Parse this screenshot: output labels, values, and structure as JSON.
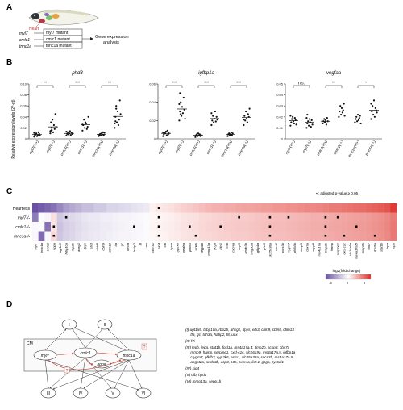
{
  "panel_letters": {
    "a": "A",
    "b": "B",
    "c": "C",
    "d": "D"
  },
  "panelA": {
    "heart_label": "Heart",
    "genes": [
      "myl7",
      "cmlc1",
      "tnnc1a"
    ],
    "mutants": [
      "myl7 mutant",
      "cmlc1 mutant",
      "tnnc1a mutant"
    ],
    "analysis": "Gene expression analysis",
    "analysis_lines": [
      "Gene expression",
      "analysis"
    ]
  },
  "panelB": {
    "ylabel": "Relative expression levels (2^-ct)",
    "groups": [
      "myl7(+/+)",
      "myl7(-/-)",
      "cmlc1(+/+)",
      "cmlc1(-/-)",
      "tnnc1a(+/+)",
      "tnnc1a(-/-)"
    ]
  },
  "panelC": {
    "row_labels": [
      "Heartless",
      "myl7-/-",
      "cmlc1-/-",
      "tnnc1a-/-"
    ],
    "legend_note": "▪ : adjusted p-value ≥ 0.05",
    "colorbar_title": "log2(fold change)",
    "colorbar_ticks": [
      "-5",
      "0",
      "5"
    ],
    "colors": {
      "neg": "#6a51a3",
      "zero": "#ffffff",
      "pos": "#de2d26"
    }
  },
  "panelD": {
    "cm_label": "CM",
    "nodes": {
      "myl7": "myl7",
      "cmlc1": "cmlc1",
      "nppa": "nppa",
      "tnnc1a": "tnnc1a"
    },
    "groups_top": [
      "I",
      "II"
    ],
    "groups_bottom": [
      "III",
      "IV",
      "V",
      "VI"
    ],
    "question": "?",
    "legend": [
      "(I) ugt1a5, fabp10a, rbp2b, ahsg1, dpys, ebi3, cbln9, cbln8, cbln13",
      "     tfa, gc, tdh3a, habp2, f8, uox",
      "(II) f7i",
      "(III) lepb, lepa, stat1b, fosl1a, ms4a17a.4, timp2b, scpp8, cbx7a",
      "     mmp9, hamp, serpine1, cxcl-c1c, slc16a9a, ms4a17a.5, igfbp1a",
      "     crygm7, pfkfb3, cyp2k6, esm1, slc25a38a, socs3b, ms4a17a.5",
      "     angpt2a, arrdc3b, ucp3, c3b, cxcr4a, il4r.1, gcga, cyr61l1",
      "(IV) sid4",
      "(V) cfb, hpda",
      "(VI) mmp13a, sepp1b"
    ]
  },
  "chart_data": [
    {
      "type": "scatter",
      "title": "phd3",
      "categories": [
        "myl7(+/+)",
        "myl7(-/-)",
        "cmlc1(+/+)",
        "cmlc1(-/-)",
        "tnnc1a(+/+)",
        "tnnc1a(-/-)"
      ],
      "ylabel": "Relative expression levels (2^-ct)",
      "ylim": [
        0,
        0.1
      ],
      "yticks": [
        "0",
        "0.02",
        "0.04",
        "0.06",
        "0.08",
        "0.10"
      ],
      "significance": [
        {
          "pair": [
            0,
            1
          ],
          "label": "**"
        },
        {
          "pair": [
            2,
            3
          ],
          "label": "***"
        },
        {
          "pair": [
            4,
            5
          ],
          "label": "**"
        }
      ],
      "series": [
        {
          "values": [
            [
              0.004,
              0.006,
              0.008,
              0.01,
              0.005,
              0.007,
              0.012,
              0.009,
              0.006,
              0.011,
              0.008
            ],
            [
              0.01,
              0.015,
              0.02,
              0.035,
              0.012,
              0.025,
              0.018,
              0.045,
              0.022,
              0.014,
              0.03,
              0.016
            ],
            [
              0.006,
              0.009,
              0.012,
              0.008,
              0.01,
              0.014,
              0.007,
              0.011,
              0.009,
              0.013
            ],
            [
              0.015,
              0.025,
              0.035,
              0.02,
              0.03,
              0.028,
              0.018,
              0.022,
              0.04,
              0.026
            ],
            [
              0.005,
              0.007,
              0.009,
              0.006,
              0.01,
              0.008,
              0.012,
              0.007,
              0.011
            ],
            [
              0.02,
              0.04,
              0.06,
              0.03,
              0.05,
              0.025,
              0.035,
              0.07,
              0.045,
              0.028,
              0.032,
              0.055
            ]
          ]
        }
      ]
    },
    {
      "type": "scatter",
      "title": "igfbp1a",
      "categories": [
        "myl7(+/+)",
        "myl7(-/-)",
        "cmlc1(+/+)",
        "cmlc1(-/-)",
        "tnnc1a(+/+)",
        "tnnc1a(-/-)"
      ],
      "ylim": [
        0,
        0.06
      ],
      "yticks": [
        "0",
        "0.02",
        "0.04",
        "0.06"
      ],
      "significance": [
        {
          "pair": [
            0,
            1
          ],
          "label": "***"
        },
        {
          "pair": [
            2,
            3
          ],
          "label": "***"
        },
        {
          "pair": [
            4,
            5
          ],
          "label": "***"
        }
      ],
      "series": [
        {
          "values": [
            [
              0.003,
              0.005,
              0.007,
              0.006,
              0.008,
              0.004,
              0.009,
              0.005,
              0.006,
              0.007
            ],
            [
              0.02,
              0.03,
              0.04,
              0.025,
              0.035,
              0.028,
              0.045,
              0.032,
              0.022,
              0.038,
              0.05,
              0.027
            ],
            [
              0.002,
              0.004,
              0.005,
              0.003,
              0.006,
              0.004,
              0.005,
              0.003,
              0.004
            ],
            [
              0.015,
              0.02,
              0.025,
              0.018,
              0.022,
              0.03,
              0.019,
              0.024,
              0.021,
              0.028
            ],
            [
              0.003,
              0.005,
              0.006,
              0.004,
              0.005,
              0.007,
              0.004,
              0.006
            ],
            [
              0.015,
              0.025,
              0.02,
              0.03,
              0.022,
              0.018,
              0.027,
              0.024,
              0.033,
              0.021
            ]
          ]
        }
      ]
    },
    {
      "type": "scatter",
      "title": "vegfaa",
      "categories": [
        "myl7(+/+)",
        "myl7(-/-)",
        "cmlc1(+/+)",
        "cmlc1(-/-)",
        "tnnc1a(+/+)",
        "tnnc1a(-/-)"
      ],
      "ylim": [
        0,
        0.05
      ],
      "yticks": [
        "0",
        "0.01",
        "0.02",
        "0.03",
        "0.04",
        "0.05"
      ],
      "significance": [
        {
          "pair": [
            0,
            1
          ],
          "label": "n.s."
        },
        {
          "pair": [
            2,
            3
          ],
          "label": "**"
        },
        {
          "pair": [
            4,
            5
          ],
          "label": "*"
        }
      ],
      "series": [
        {
          "values": [
            [
              0.012,
              0.015,
              0.018,
              0.02,
              0.016,
              0.014,
              0.019,
              0.017,
              0.013,
              0.021
            ],
            [
              0.01,
              0.014,
              0.016,
              0.012,
              0.018,
              0.015,
              0.011,
              0.017,
              0.013,
              0.019,
              0.022
            ],
            [
              0.014,
              0.016,
              0.018,
              0.015,
              0.017,
              0.013,
              0.019,
              0.016
            ],
            [
              0.02,
              0.025,
              0.03,
              0.022,
              0.028,
              0.024,
              0.026,
              0.032,
              0.021
            ],
            [
              0.015,
              0.018,
              0.02,
              0.016,
              0.022,
              0.017,
              0.019,
              0.021,
              0.014
            ],
            [
              0.018,
              0.025,
              0.03,
              0.022,
              0.035,
              0.02,
              0.028,
              0.026,
              0.024,
              0.032
            ]
          ]
        }
      ]
    },
    {
      "type": "heatmap",
      "rows": [
        "Heartless",
        "myl7-/-",
        "cmlc1-/-",
        "tnnc1a-/-"
      ],
      "columns": [
        "myl7",
        "tnnc1a",
        "cmlc1",
        "nppa",
        "ugt1a5",
        "fabp10a",
        "rbp2b",
        "ahsg1",
        "dpys",
        "ebi3",
        "cbln8",
        "cbln9",
        "cbln13",
        "tfa",
        "gc",
        "tdh3a",
        "habp2",
        "f8",
        "uox",
        "cxcl-c1",
        "sid4",
        "cfb",
        "hpda",
        "cyp2k6",
        "vegfaa",
        "pfkfb3",
        "sid4b",
        "sepp1b",
        "mmp13a",
        "gcga",
        "il4r.1",
        "c3b",
        "cxcr4a",
        "ucp3",
        "arrdc3b",
        "angpt2a",
        "igfbp1a",
        "phd3",
        "slc25a38a",
        "esm1",
        "socs3b",
        "crygm7",
        "pfkfb3b",
        "mmp9",
        "cbx7a",
        "scpp8",
        "ms4a17a",
        "timp2b",
        "hamp",
        "serpine1",
        "cxcl-c1c",
        "slc16a9a",
        "ms4a17a.5",
        "mmp9b",
        "cbx7",
        "fosl1a",
        "stat1b",
        "lepa",
        "lepb"
      ],
      "colorbar": {
        "title": "log2(fold change)",
        "ticks": [
          "-5",
          "0",
          "5"
        ],
        "range": [
          -8,
          8
        ]
      },
      "values": [
        [
          -8.0,
          -7.5,
          -7.0,
          -6.5,
          -5.5,
          -4.5,
          -4.0,
          -3.5,
          -3.0,
          -3.0,
          -2.5,
          -2.5,
          -2.0,
          -2.0,
          -1.8,
          -1.6,
          -1.4,
          -1.2,
          -1.0,
          0.5,
          0.8,
          1.0,
          1.2,
          1.5,
          1.8,
          2.0,
          2.2,
          2.5,
          2.8,
          3.0,
          3.0,
          3.2,
          3.2,
          3.4,
          3.5,
          3.5,
          3.6,
          3.8,
          3.8,
          4.0,
          4.0,
          4.2,
          4.2,
          4.4,
          4.5,
          4.5,
          4.6,
          4.8,
          5.0,
          5.0,
          5.2,
          5.3,
          5.5,
          5.6,
          5.8,
          6.0,
          6.2,
          6.5,
          7.5
        ],
        [
          -6.0,
          -0.2,
          -0.5,
          1.2,
          -2.5,
          -2.0,
          -1.8,
          -1.5,
          -1.2,
          -1.0,
          -1.0,
          -0.8,
          -0.8,
          -0.6,
          -0.5,
          -0.5,
          -0.4,
          -0.3,
          -0.2,
          0.3,
          0.4,
          0.5,
          0.6,
          0.8,
          1.0,
          1.1,
          1.2,
          1.4,
          1.5,
          1.6,
          1.7,
          1.8,
          1.9,
          2.0,
          2.0,
          2.1,
          2.2,
          2.3,
          2.4,
          2.5,
          2.5,
          2.6,
          2.7,
          2.8,
          2.9,
          3.0,
          3.0,
          3.1,
          3.2,
          3.3,
          3.4,
          3.5,
          3.6,
          3.7,
          3.8,
          4.0,
          4.2,
          4.5,
          5.0
        ],
        [
          -0.3,
          -0.2,
          -6.5,
          1.0,
          -2.8,
          -2.2,
          -2.0,
          -1.6,
          -1.4,
          -1.2,
          -1.1,
          -0.9,
          -0.9,
          -0.7,
          -0.6,
          -0.5,
          -0.4,
          -0.4,
          -0.2,
          0.4,
          0.5,
          0.6,
          0.7,
          0.9,
          1.1,
          1.2,
          1.3,
          1.5,
          1.6,
          1.7,
          1.8,
          1.9,
          2.0,
          2.1,
          2.1,
          2.2,
          2.3,
          2.4,
          2.5,
          2.6,
          2.6,
          2.7,
          2.8,
          2.9,
          3.0,
          3.1,
          3.1,
          3.2,
          3.3,
          3.4,
          3.5,
          3.6,
          3.7,
          3.8,
          3.9,
          4.1,
          4.3,
          4.6,
          5.2
        ],
        [
          -0.4,
          -6.8,
          -0.3,
          1.5,
          -2.6,
          -2.1,
          -1.9,
          -1.5,
          -1.3,
          -1.1,
          -1.0,
          -0.9,
          -0.8,
          -0.6,
          -0.5,
          -0.5,
          -0.4,
          -0.3,
          -0.2,
          0.3,
          0.4,
          0.5,
          0.7,
          0.8,
          1.0,
          1.1,
          1.2,
          1.4,
          1.5,
          1.6,
          1.7,
          1.8,
          1.9,
          2.0,
          2.0,
          2.1,
          2.2,
          2.3,
          2.4,
          2.5,
          2.5,
          2.6,
          2.7,
          2.8,
          2.9,
          3.0,
          3.0,
          3.1,
          3.2,
          3.3,
          3.4,
          3.5,
          3.6,
          3.7,
          3.8,
          4.0,
          4.2,
          4.5,
          5.1
        ]
      ],
      "nonsignificant": [
        [
          0,
          20
        ],
        [
          1,
          5
        ],
        [
          1,
          20
        ],
        [
          1,
          33
        ],
        [
          1,
          38
        ],
        [
          1,
          41
        ],
        [
          1,
          47
        ],
        [
          1,
          49
        ],
        [
          2,
          3
        ],
        [
          2,
          16
        ],
        [
          2,
          20
        ],
        [
          2,
          25
        ],
        [
          2,
          30
        ],
        [
          2,
          38
        ],
        [
          2,
          47
        ],
        [
          2,
          52
        ],
        [
          3,
          3
        ],
        [
          3,
          20
        ],
        [
          3,
          26
        ],
        [
          3,
          38
        ],
        [
          3,
          47
        ],
        [
          3,
          50
        ],
        [
          3,
          55
        ]
      ]
    }
  ]
}
